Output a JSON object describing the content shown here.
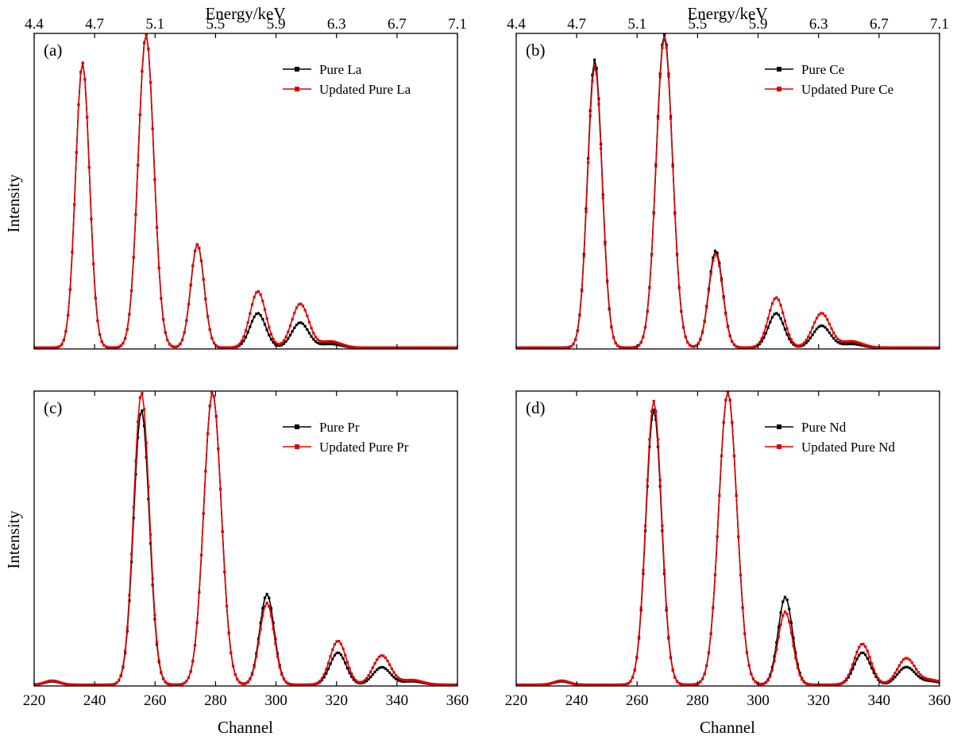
{
  "figure": {
    "top_axis_label": "Energy/keV",
    "bottom_axis_label": "Channel",
    "y_axis_label": "Intensity",
    "energy_ticks": [
      "4.4",
      "4.7",
      "5.1",
      "5.5",
      "5.9",
      "6.3",
      "6.7",
      "7.1"
    ],
    "channel_ticks": [
      "220",
      "240",
      "260",
      "280",
      "300",
      "320",
      "340",
      "360"
    ]
  },
  "chart_data": [
    {
      "type": "line",
      "panel_label": "(a)",
      "xlim": [
        220,
        360
      ],
      "ylim": [
        0,
        1
      ],
      "x2lim": [
        4.4,
        7.1
      ],
      "x2label": "Energy/keV",
      "ylabel": "Intensity",
      "legend_position": "top-right",
      "series": [
        {
          "name": "Pure La",
          "color": "#000000",
          "marker": "square",
          "peaks": [
            [
              236,
              0.91,
              2.3
            ],
            [
              257,
              1.0,
              2.6
            ],
            [
              274,
              0.33,
              2.2
            ],
            [
              294,
              0.11,
              2.6
            ],
            [
              308,
              0.08,
              2.8
            ],
            [
              318,
              0.012,
              3.5
            ]
          ],
          "baseline": 0.004
        },
        {
          "name": "Updated Pure La",
          "color": "#e00000",
          "marker": "square",
          "peaks": [
            [
              236,
              0.91,
              2.3
            ],
            [
              257,
              1.0,
              2.6
            ],
            [
              274,
              0.33,
              2.2
            ],
            [
              294,
              0.18,
              2.6
            ],
            [
              308,
              0.14,
              2.8
            ],
            [
              318,
              0.02,
              3.5
            ]
          ],
          "baseline": 0.004
        }
      ]
    },
    {
      "type": "line",
      "panel_label": "(b)",
      "xlim": [
        220,
        360
      ],
      "ylim": [
        0,
        1
      ],
      "x2lim": [
        4.4,
        7.1
      ],
      "x2label": "Energy/keV",
      "legend_position": "top-right",
      "series": [
        {
          "name": "Pure Ce",
          "color": "#000000",
          "marker": "square",
          "peaks": [
            [
              246,
              0.92,
              2.4
            ],
            [
              269,
              1.0,
              2.7
            ],
            [
              286,
              0.31,
              2.3
            ],
            [
              306,
              0.11,
              2.6
            ],
            [
              321,
              0.07,
              2.9
            ],
            [
              331,
              0.012,
              3.5
            ]
          ],
          "baseline": 0.004
        },
        {
          "name": "Updated Pure Ce",
          "color": "#e00000",
          "marker": "square",
          "peaks": [
            [
              246,
              0.9,
              2.4
            ],
            [
              269,
              0.99,
              2.7
            ],
            [
              286,
              0.3,
              2.3
            ],
            [
              306,
              0.16,
              2.6
            ],
            [
              321,
              0.11,
              2.9
            ],
            [
              331,
              0.02,
              3.5
            ]
          ],
          "baseline": 0.004
        }
      ]
    },
    {
      "type": "line",
      "panel_label": "(c)",
      "xlim": [
        220,
        360
      ],
      "ylim": [
        0,
        1
      ],
      "xlabel": "Channel",
      "ylabel": "Intensity",
      "legend_position": "top-right",
      "series": [
        {
          "name": "Pure Pr",
          "color": "#000000",
          "marker": "square",
          "peaks": [
            [
              226,
              0.012,
              2.5
            ],
            [
              255.5,
              0.94,
              2.6
            ],
            [
              279,
              1.0,
              2.9
            ],
            [
              297,
              0.31,
              2.4
            ],
            [
              320.5,
              0.11,
              2.7
            ],
            [
              335,
              0.06,
              2.9
            ],
            [
              345,
              0.012,
              3.5
            ]
          ],
          "baseline": 0.004
        },
        {
          "name": "Updated Pure Pr",
          "color": "#e00000",
          "marker": "square",
          "peaks": [
            [
              226,
              0.014,
              2.5
            ],
            [
              255.5,
              1.0,
              2.6
            ],
            [
              279,
              1.0,
              2.9
            ],
            [
              297,
              0.28,
              2.4
            ],
            [
              320.5,
              0.15,
              2.7
            ],
            [
              335,
              0.1,
              2.9
            ],
            [
              345,
              0.016,
              3.5
            ]
          ],
          "baseline": 0.004
        }
      ]
    },
    {
      "type": "line",
      "panel_label": "(d)",
      "xlim": [
        220,
        360
      ],
      "ylim": [
        0,
        1
      ],
      "xlabel": "Channel",
      "legend_position": "top-right",
      "series": [
        {
          "name": "Pure Nd",
          "color": "#000000",
          "marker": "square",
          "peaks": [
            [
              235,
              0.012,
              2.5
            ],
            [
              265.5,
              0.94,
              2.6
            ],
            [
              290,
              1.0,
              3.0
            ],
            [
              309,
              0.3,
              2.4
            ],
            [
              334.5,
              0.11,
              2.7
            ],
            [
              349,
              0.06,
              2.9
            ],
            [
              357,
              0.012,
              3.5
            ]
          ],
          "baseline": 0.004
        },
        {
          "name": "Updated Pure Nd",
          "color": "#e00000",
          "marker": "square",
          "peaks": [
            [
              235,
              0.014,
              2.5
            ],
            [
              265.5,
              0.97,
              2.6
            ],
            [
              290,
              1.0,
              3.0
            ],
            [
              309,
              0.25,
              2.4
            ],
            [
              334.5,
              0.14,
              2.7
            ],
            [
              349,
              0.09,
              2.9
            ],
            [
              357,
              0.016,
              3.5
            ]
          ],
          "baseline": 0.004
        }
      ]
    }
  ]
}
